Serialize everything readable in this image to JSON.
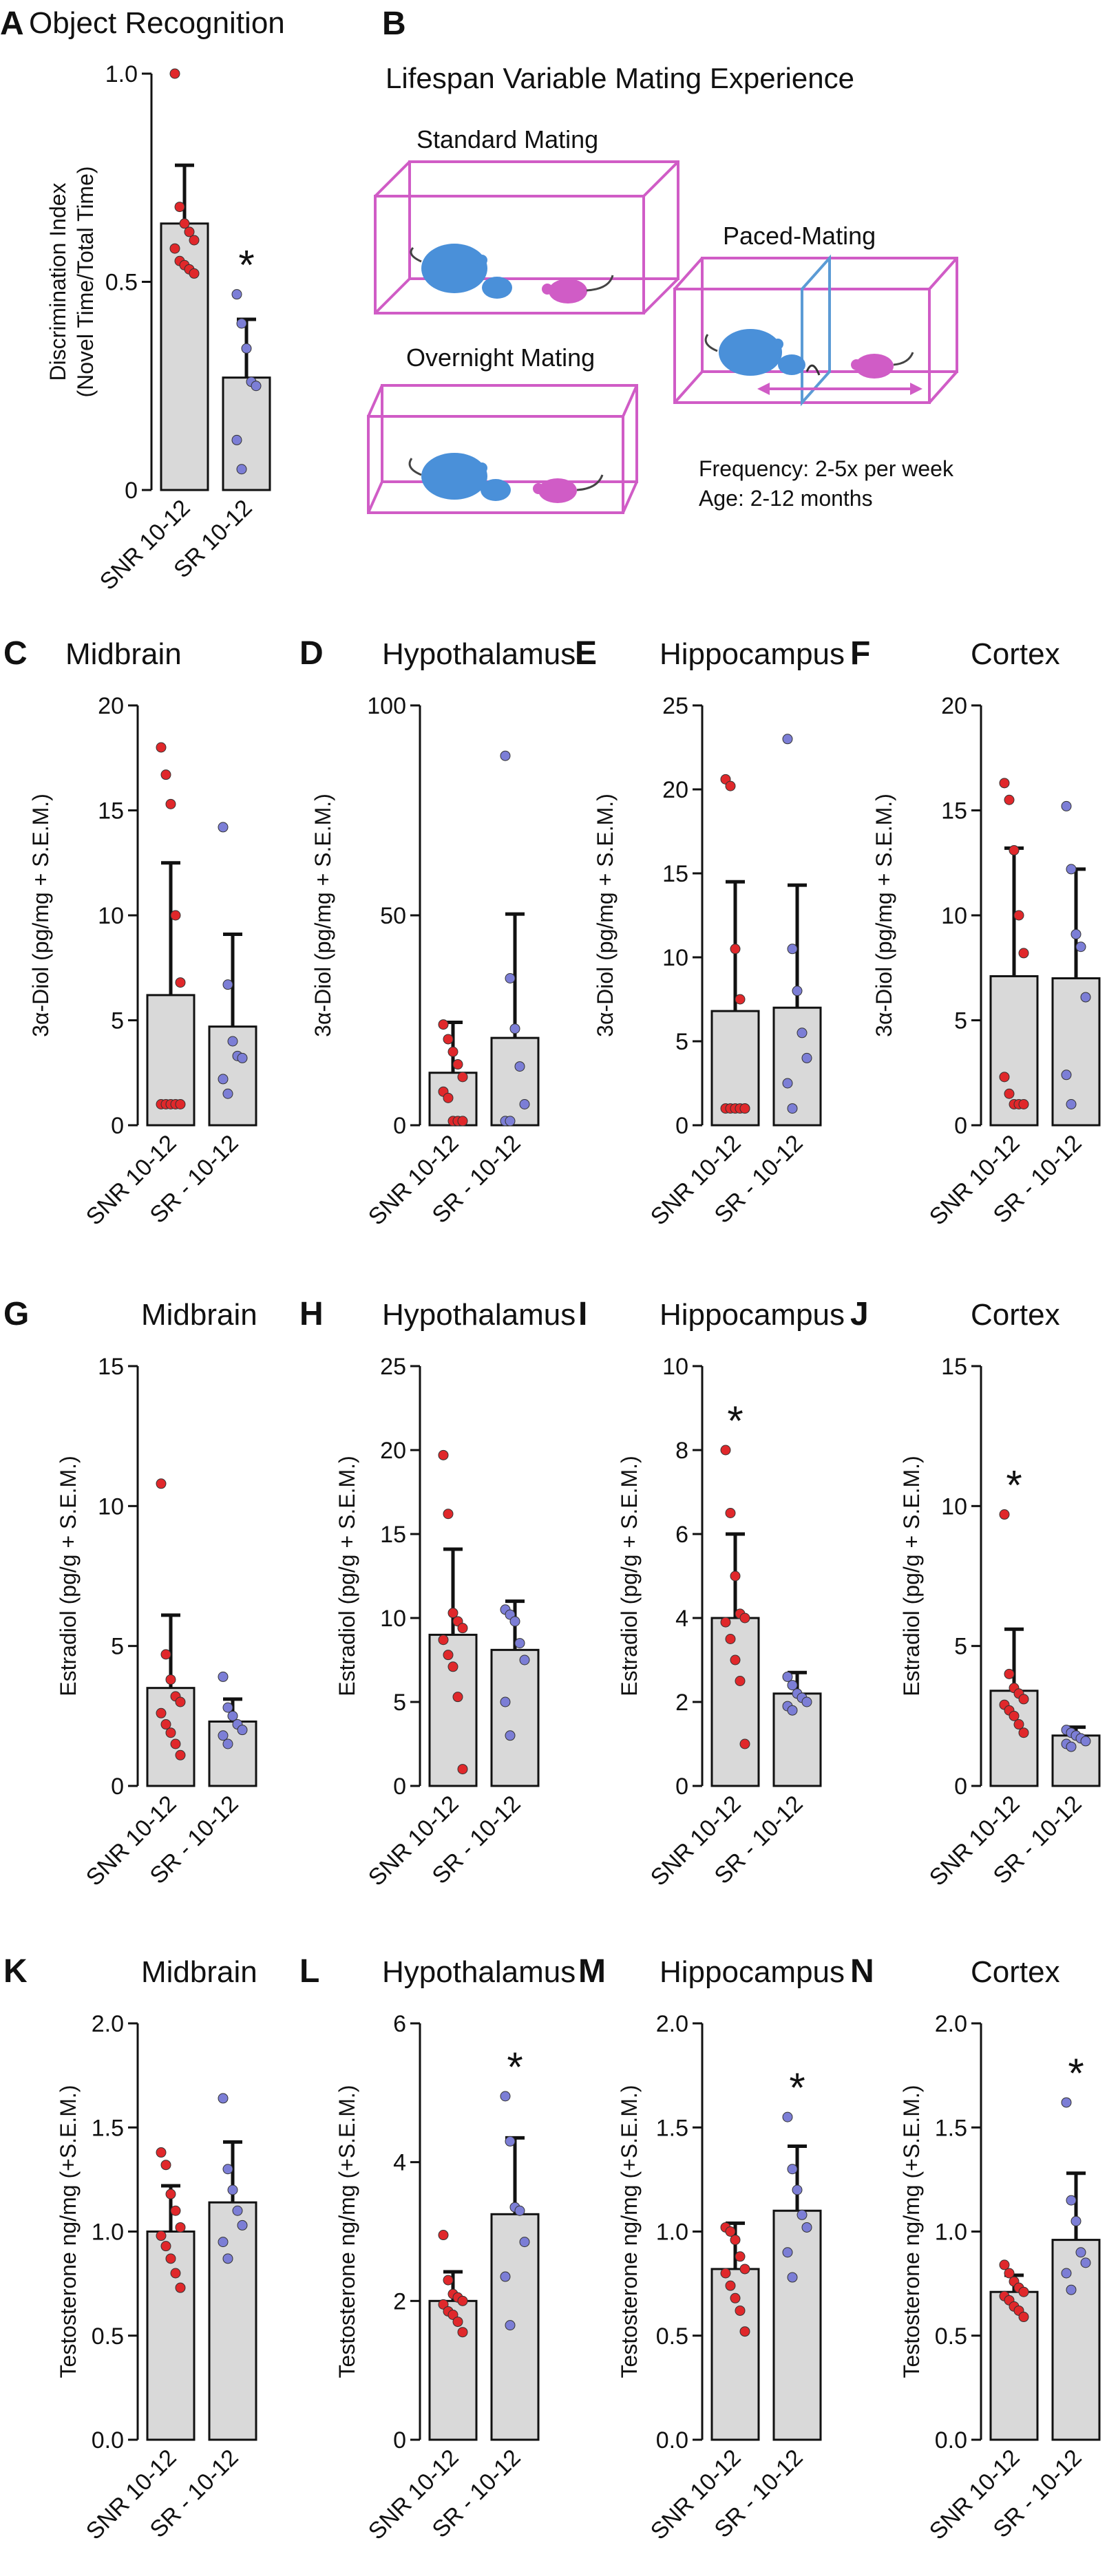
{
  "colors": {
    "bar_fill": "#d9d9d9",
    "bar_edge": "#111111",
    "group1_dot": "#e0282b",
    "group2_dot": "#7c7ed6",
    "cage": "#d05cc6",
    "male_mouse": "#4a90d9",
    "female_mouse": "#d05cc6",
    "divider": "#5b9bd5"
  },
  "panel_B": {
    "label": "B",
    "title": "Lifespan Variable Mating Experience",
    "standard": "Standard Mating",
    "overnight": "Overnight Mating",
    "paced": "Paced-Mating",
    "frequency": "Frequency: 2-5x per week",
    "age": "Age: 2-12 months"
  },
  "chart_data": [
    {
      "panel": "A",
      "type": "bar",
      "title": "Object Recognition",
      "ylabel": [
        "Discrimination Index",
        "(Novel Time/Total Time)"
      ],
      "ylim": [
        0,
        1.0
      ],
      "yticks": [
        "0",
        "0.5",
        "1.0"
      ],
      "categories": [
        "SNR 10-12",
        "SR 10-12"
      ],
      "values": [
        0.64,
        0.27
      ],
      "sem": [
        0.14,
        0.14
      ],
      "points": [
        [
          1.0,
          0.68,
          0.64,
          0.62,
          0.6,
          0.58,
          0.55,
          0.54,
          0.53,
          0.52
        ],
        [
          0.47,
          0.4,
          0.34,
          0.26,
          0.25,
          0.12,
          0.05
        ]
      ],
      "significance": [
        "",
        "*"
      ]
    },
    {
      "panel": "C",
      "type": "bar",
      "title": "Midbrain",
      "ylabel": "3α-Diol (pg/mg + S.E.M.)",
      "ylim": [
        0,
        20
      ],
      "yticks": [
        "0",
        "5",
        "10",
        "15",
        "20"
      ],
      "categories": [
        "SNR 10-12",
        "SR - 10-12"
      ],
      "values": [
        6.2,
        4.7
      ],
      "sem": [
        6.3,
        4.4
      ],
      "points": [
        [
          18.0,
          16.7,
          15.3,
          10.0,
          6.8,
          1.0,
          1.0,
          1.0,
          1.0,
          1.0
        ],
        [
          14.2,
          6.7,
          4.0,
          3.3,
          3.2,
          2.2,
          1.5
        ]
      ],
      "significance": [
        "",
        ""
      ]
    },
    {
      "panel": "D",
      "type": "bar",
      "title": "Hypothalamus",
      "ylabel": "3α-Diol (pg/mg + S.E.M.)",
      "ylim": [
        0,
        100
      ],
      "yticks": [
        "0",
        "50",
        "100"
      ],
      "categories": [
        "SNR 10-12",
        "SR - 10-12"
      ],
      "values": [
        12.5,
        20.8
      ],
      "sem": [
        12.0,
        29.5
      ],
      "points": [
        [
          24.0,
          20.5,
          17.5,
          14.5,
          11.5,
          8.0,
          6.5,
          1.0,
          1.0,
          1.0
        ],
        [
          88.0,
          35.0,
          23.0,
          14.0,
          5.0,
          1.0,
          1.0
        ]
      ],
      "significance": [
        "",
        ""
      ]
    },
    {
      "panel": "E",
      "type": "bar",
      "title": "Hippocampus",
      "ylabel": "3α-Diol (pg/mg + S.E.M.)",
      "ylim": [
        0,
        25
      ],
      "yticks": [
        "0",
        "5",
        "10",
        "15",
        "20",
        "25"
      ],
      "categories": [
        "SNR 10-12",
        "SR - 10-12"
      ],
      "values": [
        6.8,
        7.0
      ],
      "sem": [
        7.7,
        7.3
      ],
      "points": [
        [
          20.6,
          20.2,
          10.5,
          7.5,
          1.0,
          1.0,
          1.0,
          1.0,
          1.0,
          1.0
        ],
        [
          23.0,
          10.5,
          8.0,
          5.5,
          4.0,
          2.5,
          1.0
        ]
      ],
      "significance": [
        "",
        ""
      ]
    },
    {
      "panel": "F",
      "type": "bar",
      "title": "Cortex",
      "ylabel": "3α-Diol (pg/mg + S.E.M.)",
      "ylim": [
        0,
        20
      ],
      "yticks": [
        "0",
        "5",
        "10",
        "15",
        "20"
      ],
      "categories": [
        "SNR 10-12",
        "SR - 10-12"
      ],
      "values": [
        7.1,
        7.0
      ],
      "sem": [
        6.1,
        5.2
      ],
      "points": [
        [
          16.3,
          15.5,
          13.1,
          10.0,
          8.2,
          2.3,
          1.5,
          1.0,
          1.0,
          1.0
        ],
        [
          15.2,
          12.2,
          9.1,
          8.5,
          6.1,
          2.4,
          1.0
        ]
      ],
      "significance": [
        "",
        ""
      ]
    },
    {
      "panel": "G",
      "type": "bar",
      "title": "Midbrain",
      "ylabel": "Estradiol (pg/g + S.E.M.)",
      "ylim": [
        0,
        15
      ],
      "yticks": [
        "0",
        "5",
        "10",
        "15"
      ],
      "categories": [
        "SNR 10-12",
        "SR - 10-12"
      ],
      "values": [
        3.5,
        2.3
      ],
      "sem": [
        2.6,
        0.8
      ],
      "points": [
        [
          10.8,
          4.7,
          3.8,
          3.2,
          3.0,
          2.6,
          2.2,
          1.9,
          1.5,
          1.1
        ],
        [
          3.9,
          2.8,
          2.5,
          2.2,
          2.0,
          1.8,
          1.5
        ]
      ],
      "significance": [
        "",
        ""
      ]
    },
    {
      "panel": "H",
      "type": "bar",
      "title": "Hypothalamus",
      "ylabel": "Estradiol (pg/g + S.E.M.)",
      "ylim": [
        0,
        25
      ],
      "yticks": [
        "0",
        "5",
        "10",
        "15",
        "20",
        "25"
      ],
      "categories": [
        "SNR 10-12",
        "SR - 10-12"
      ],
      "values": [
        9.0,
        8.1
      ],
      "sem": [
        5.1,
        2.9
      ],
      "points": [
        [
          19.7,
          16.2,
          10.3,
          9.8,
          9.4,
          8.7,
          7.8,
          7.1,
          5.3,
          1.0
        ],
        [
          10.5,
          10.2,
          9.8,
          8.5,
          7.5,
          5.0,
          3.0
        ]
      ],
      "significance": [
        "",
        ""
      ]
    },
    {
      "panel": "I",
      "type": "bar",
      "title": "Hippocampus",
      "ylabel": "Estradiol (pg/g + S.E.M.)",
      "ylim": [
        0,
        10
      ],
      "yticks": [
        "0",
        "2",
        "4",
        "6",
        "8",
        "10"
      ],
      "categories": [
        "SNR 10-12",
        "SR - 10-12"
      ],
      "values": [
        4.0,
        2.2
      ],
      "sem": [
        2.0,
        0.5
      ],
      "points": [
        [
          8.0,
          6.5,
          5.0,
          4.1,
          4.0,
          3.9,
          3.5,
          3.0,
          2.5,
          1.0
        ],
        [
          2.6,
          2.4,
          2.2,
          2.1,
          2.0,
          1.9,
          1.8
        ]
      ],
      "significance": [
        "*",
        ""
      ]
    },
    {
      "panel": "J",
      "type": "bar",
      "title": "Cortex",
      "ylabel": "Estradiol (pg/g + S.E.M.)",
      "ylim": [
        0,
        15
      ],
      "yticks": [
        "0",
        "5",
        "10",
        "15"
      ],
      "categories": [
        "SNR 10-12",
        "SR - 10-12"
      ],
      "values": [
        3.4,
        1.8
      ],
      "sem": [
        2.2,
        0.3
      ],
      "points": [
        [
          9.7,
          4.0,
          3.5,
          3.3,
          3.1,
          2.9,
          2.7,
          2.5,
          2.2,
          1.9
        ],
        [
          2.0,
          1.9,
          1.8,
          1.7,
          1.6,
          1.5,
          1.4
        ]
      ],
      "significance": [
        "*",
        ""
      ]
    },
    {
      "panel": "K",
      "type": "bar",
      "title": "Midbrain",
      "ylabel": "Testosterone ng/mg (+S.E.M.)",
      "ylim": [
        0,
        2.0
      ],
      "yticks": [
        "0.0",
        "0.5",
        "1.0",
        "1.5",
        "2.0"
      ],
      "categories": [
        "SNR 10-12",
        "SR - 10-12"
      ],
      "values": [
        1.0,
        1.14
      ],
      "sem": [
        0.22,
        0.29
      ],
      "points": [
        [
          1.38,
          1.32,
          1.18,
          1.1,
          1.02,
          0.98,
          0.93,
          0.87,
          0.8,
          0.73
        ],
        [
          1.64,
          1.3,
          1.2,
          1.1,
          1.03,
          0.95,
          0.87
        ]
      ],
      "significance": [
        "",
        ""
      ]
    },
    {
      "panel": "L",
      "type": "bar",
      "title": "Hypothalamus",
      "ylabel": "Testosterone ng/mg (+S.E.M.)",
      "ylim": [
        0,
        6
      ],
      "yticks": [
        "0",
        "2",
        "4",
        "6"
      ],
      "categories": [
        "SNR 10-12",
        "SR - 10-12"
      ],
      "values": [
        2.0,
        3.25
      ],
      "sem": [
        0.42,
        1.1
      ],
      "points": [
        [
          2.95,
          2.3,
          2.1,
          2.05,
          2.0,
          1.95,
          1.85,
          1.8,
          1.7,
          1.55
        ],
        [
          4.95,
          4.3,
          3.35,
          3.3,
          2.85,
          2.35,
          1.65
        ]
      ],
      "significance": [
        "",
        "*"
      ]
    },
    {
      "panel": "M",
      "type": "bar",
      "title": "Hippocampus",
      "ylabel": "Testosterone ng/mg (+S.E.M.)",
      "ylim": [
        0,
        2.0
      ],
      "yticks": [
        "0.0",
        "0.5",
        "1.0",
        "1.5",
        "2.0"
      ],
      "categories": [
        "SNR 10-12",
        "SR - 10-12"
      ],
      "values": [
        0.82,
        1.1
      ],
      "sem": [
        0.22,
        0.31
      ],
      "points": [
        [
          1.02,
          1.0,
          0.96,
          0.88,
          0.82,
          0.8,
          0.74,
          0.68,
          0.62,
          0.52
        ],
        [
          1.55,
          1.3,
          1.2,
          1.08,
          1.02,
          0.9,
          0.78
        ]
      ],
      "significance": [
        "",
        "*"
      ]
    },
    {
      "panel": "N",
      "type": "bar",
      "title": "Cortex",
      "ylabel": "Testosterone ng/mg (+S.E.M.)",
      "ylim": [
        0,
        2.0
      ],
      "yticks": [
        "0.0",
        "0.5",
        "1.0",
        "1.5",
        "2.0"
      ],
      "categories": [
        "SNR 10-12",
        "SR - 10-12"
      ],
      "values": [
        0.71,
        0.96
      ],
      "sem": [
        0.08,
        0.32
      ],
      "points": [
        [
          0.84,
          0.8,
          0.76,
          0.73,
          0.71,
          0.69,
          0.67,
          0.64,
          0.62,
          0.59
        ],
        [
          1.62,
          1.15,
          1.05,
          0.9,
          0.85,
          0.8,
          0.72
        ]
      ],
      "significance": [
        "",
        "*"
      ]
    }
  ]
}
